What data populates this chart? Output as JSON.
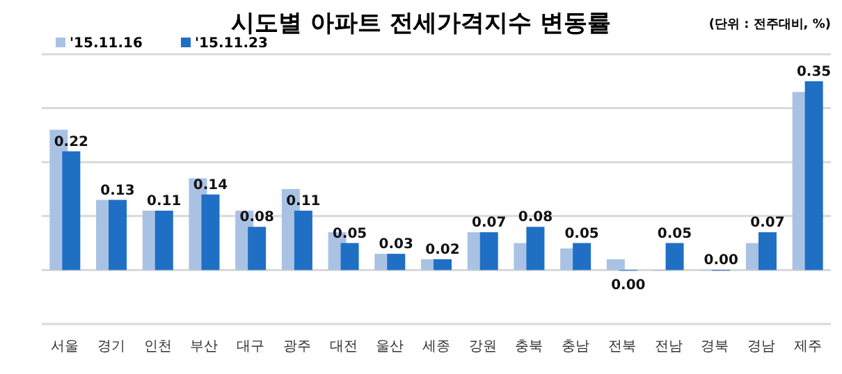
{
  "chart_data": {
    "type": "bar",
    "title": "시도별 아파트 전세가격지수 변동률",
    "annotations": [
      "(단위 : 전주대비, %)"
    ],
    "categories": [
      "서울",
      "경기",
      "인천",
      "부산",
      "대구",
      "광주",
      "대전",
      "울산",
      "세종",
      "강원",
      "충북",
      "충남",
      "전북",
      "전남",
      "경북",
      "경남",
      "제주"
    ],
    "series": [
      {
        "name": "'15.11.16",
        "color": "#a9c2e4",
        "values": [
          0.26,
          0.13,
          0.11,
          0.17,
          0.11,
          0.15,
          0.07,
          0.03,
          0.02,
          0.07,
          0.05,
          0.04,
          0.02,
          0.0,
          0.0,
          0.05,
          0.33
        ]
      },
      {
        "name": "'15.11.23",
        "color": "#1f6fc5",
        "values": [
          0.22,
          0.13,
          0.11,
          0.14,
          0.08,
          0.11,
          0.05,
          0.03,
          0.02,
          0.07,
          0.08,
          0.05,
          0.0,
          0.05,
          0.0,
          0.07,
          0.35
        ],
        "value_labels": [
          "0.22",
          "0.13",
          "0.11",
          "0.14",
          "0.08",
          "0.11",
          "0.05",
          "0.03",
          "0.02",
          "0.07",
          "0.08",
          "0.05",
          "0.00",
          "0.05",
          "0.00",
          "0.07",
          "0.35"
        ]
      }
    ],
    "ylim": [
      -0.1,
      0.4
    ],
    "yticks": [
      {
        "value": -0.1,
        "label": null
      },
      {
        "value": 0,
        "label": null
      },
      {
        "value": 0.1,
        "label": null
      },
      {
        "value": 0.2,
        "label": null
      },
      {
        "value": 0.3,
        "label": null
      },
      {
        "value": 0.4,
        "label": null
      }
    ],
    "grid": "y",
    "legend": "top left"
  }
}
